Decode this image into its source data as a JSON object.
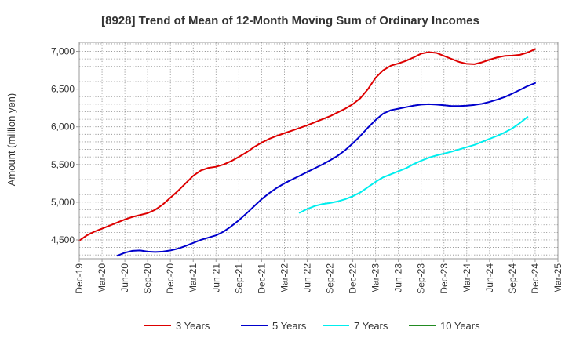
{
  "chart_data": {
    "type": "line",
    "title": "[8928]  Trend of Mean of 12-Month Moving Sum of Ordinary Incomes",
    "xlabel": "",
    "ylabel": "Amount (million yen)",
    "ylim": [
      4250,
      7120
    ],
    "yticks": [
      4500,
      5000,
      5500,
      6000,
      6500,
      7000
    ],
    "ytick_labels": [
      "4,500",
      "5,000",
      "5,500",
      "6,000",
      "6,500",
      "7,000"
    ],
    "x_tick_labels": [
      "Dec-19",
      "Mar-20",
      "Jun-20",
      "Sep-20",
      "Dec-20",
      "Mar-21",
      "Jun-21",
      "Sep-21",
      "Dec-21",
      "Mar-22",
      "Jun-22",
      "Sep-22",
      "Dec-22",
      "Mar-23",
      "Jun-23",
      "Sep-23",
      "Dec-23",
      "Mar-24",
      "Jun-24",
      "Sep-24",
      "Dec-24",
      "Mar-25"
    ],
    "x_range_months": [
      0,
      63
    ],
    "grid": true,
    "legend_position": "bottom",
    "series": [
      {
        "name": "3 Years",
        "color": "#dd0000",
        "points": [
          [
            0,
            4490
          ],
          [
            1,
            4560
          ],
          [
            2,
            4610
          ],
          [
            3,
            4650
          ],
          [
            4,
            4690
          ],
          [
            5,
            4730
          ],
          [
            6,
            4770
          ],
          [
            7,
            4805
          ],
          [
            8,
            4830
          ],
          [
            9,
            4855
          ],
          [
            10,
            4900
          ],
          [
            11,
            4970
          ],
          [
            12,
            5060
          ],
          [
            13,
            5150
          ],
          [
            14,
            5250
          ],
          [
            15,
            5350
          ],
          [
            16,
            5420
          ],
          [
            17,
            5455
          ],
          [
            18,
            5470
          ],
          [
            19,
            5500
          ],
          [
            20,
            5545
          ],
          [
            21,
            5600
          ],
          [
            22,
            5660
          ],
          [
            23,
            5730
          ],
          [
            24,
            5790
          ],
          [
            25,
            5840
          ],
          [
            26,
            5880
          ],
          [
            27,
            5915
          ],
          [
            28,
            5950
          ],
          [
            29,
            5985
          ],
          [
            30,
            6020
          ],
          [
            31,
            6060
          ],
          [
            32,
            6100
          ],
          [
            33,
            6140
          ],
          [
            34,
            6190
          ],
          [
            35,
            6240
          ],
          [
            36,
            6300
          ],
          [
            37,
            6380
          ],
          [
            38,
            6500
          ],
          [
            39,
            6650
          ],
          [
            40,
            6750
          ],
          [
            41,
            6810
          ],
          [
            42,
            6840
          ],
          [
            43,
            6875
          ],
          [
            44,
            6920
          ],
          [
            45,
            6970
          ],
          [
            46,
            6990
          ],
          [
            47,
            6980
          ],
          [
            48,
            6940
          ],
          [
            49,
            6900
          ],
          [
            50,
            6860
          ],
          [
            51,
            6835
          ],
          [
            52,
            6830
          ],
          [
            53,
            6855
          ],
          [
            54,
            6890
          ],
          [
            55,
            6920
          ],
          [
            56,
            6940
          ],
          [
            57,
            6945
          ],
          [
            58,
            6955
          ],
          [
            59,
            6985
          ],
          [
            60,
            7030
          ]
        ]
      },
      {
        "name": "5 Years",
        "color": "#0000cc",
        "points": [
          [
            5,
            4290
          ],
          [
            6,
            4330
          ],
          [
            7,
            4355
          ],
          [
            8,
            4360
          ],
          [
            9,
            4345
          ],
          [
            10,
            4340
          ],
          [
            11,
            4345
          ],
          [
            12,
            4360
          ],
          [
            13,
            4385
          ],
          [
            14,
            4420
          ],
          [
            15,
            4460
          ],
          [
            16,
            4500
          ],
          [
            17,
            4530
          ],
          [
            18,
            4560
          ],
          [
            19,
            4610
          ],
          [
            20,
            4680
          ],
          [
            21,
            4760
          ],
          [
            22,
            4850
          ],
          [
            23,
            4945
          ],
          [
            24,
            5040
          ],
          [
            25,
            5120
          ],
          [
            26,
            5190
          ],
          [
            27,
            5250
          ],
          [
            28,
            5300
          ],
          [
            29,
            5350
          ],
          [
            30,
            5400
          ],
          [
            31,
            5450
          ],
          [
            32,
            5500
          ],
          [
            33,
            5555
          ],
          [
            34,
            5615
          ],
          [
            35,
            5690
          ],
          [
            36,
            5780
          ],
          [
            37,
            5880
          ],
          [
            38,
            5990
          ],
          [
            39,
            6090
          ],
          [
            40,
            6175
          ],
          [
            41,
            6220
          ],
          [
            42,
            6240
          ],
          [
            43,
            6260
          ],
          [
            44,
            6280
          ],
          [
            45,
            6295
          ],
          [
            46,
            6300
          ],
          [
            47,
            6295
          ],
          [
            48,
            6285
          ],
          [
            49,
            6275
          ],
          [
            50,
            6275
          ],
          [
            51,
            6280
          ],
          [
            52,
            6290
          ],
          [
            53,
            6305
          ],
          [
            54,
            6330
          ],
          [
            55,
            6360
          ],
          [
            56,
            6395
          ],
          [
            57,
            6440
          ],
          [
            58,
            6490
          ],
          [
            59,
            6540
          ],
          [
            60,
            6580
          ]
        ]
      },
      {
        "name": "7 Years",
        "color": "#00eeee",
        "points": [
          [
            29,
            4860
          ],
          [
            30,
            4910
          ],
          [
            31,
            4950
          ],
          [
            32,
            4975
          ],
          [
            33,
            4990
          ],
          [
            34,
            5010
          ],
          [
            35,
            5040
          ],
          [
            36,
            5080
          ],
          [
            37,
            5130
          ],
          [
            38,
            5200
          ],
          [
            39,
            5270
          ],
          [
            40,
            5330
          ],
          [
            41,
            5370
          ],
          [
            42,
            5410
          ],
          [
            43,
            5450
          ],
          [
            44,
            5505
          ],
          [
            45,
            5550
          ],
          [
            46,
            5590
          ],
          [
            47,
            5620
          ],
          [
            48,
            5645
          ],
          [
            49,
            5670
          ],
          [
            50,
            5700
          ],
          [
            51,
            5730
          ],
          [
            52,
            5760
          ],
          [
            53,
            5800
          ],
          [
            54,
            5840
          ],
          [
            55,
            5880
          ],
          [
            56,
            5925
          ],
          [
            57,
            5980
          ],
          [
            58,
            6050
          ],
          [
            59,
            6130
          ]
        ]
      },
      {
        "name": "10 Years",
        "color": "#228b22",
        "points": []
      }
    ]
  }
}
